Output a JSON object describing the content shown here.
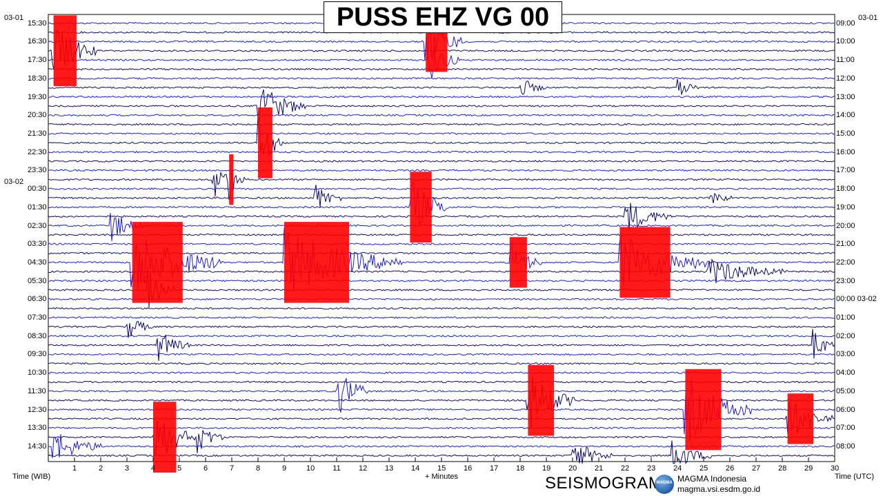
{
  "header": {
    "title": "PUSS EHZ VG 00"
  },
  "dates": {
    "left_top": "03-01",
    "left_mid": "03-02",
    "right_top": "03-01"
  },
  "axis": {
    "left_label": "Time (WIB)",
    "center_label": "+ Minutes",
    "right_label": "Time (UTC)"
  },
  "footer": {
    "brand": "SEISMOGRAM",
    "logo_text": "MAGMA",
    "org_name": "MAGMA Indonesia",
    "org_url": "magma.vsi.esdm.go.id"
  },
  "colors": {
    "trace_dark": "#0a0a6e",
    "trace_blue": "#1a1ae6",
    "clipped": "#ff0000",
    "grid": "#000000"
  },
  "chart_data": {
    "type": "helicorder",
    "station": "PUSS EHZ VG 00",
    "x_ticks": [
      "1",
      "2",
      "3",
      "4",
      "5",
      "6",
      "7",
      "8",
      "9",
      "10",
      "11",
      "12",
      "13",
      "14",
      "15",
      "16",
      "17",
      "18",
      "19",
      "20",
      "21",
      "22",
      "23",
      "24",
      "25",
      "26",
      "27",
      "28",
      "29",
      "30"
    ],
    "xlim": [
      0,
      30
    ],
    "left_ticks": [
      "15:30",
      "16:30",
      "17:30",
      "18:30",
      "19:30",
      "20:30",
      "21:30",
      "22:30",
      "23:30",
      "00:30",
      "01:30",
      "02:30",
      "03:30",
      "04:30",
      "05:30",
      "06:30",
      "07:30",
      "08:30",
      "09:30",
      "10:30",
      "11:30",
      "12:30",
      "13:30",
      "14:30"
    ],
    "right_ticks": [
      "09:00",
      "10:00",
      "11:00",
      "12:00",
      "13:00",
      "14:00",
      "15:00",
      "16:00",
      "17:00",
      "18:00",
      "19:00",
      "20:00",
      "21:00",
      "22:00",
      "23:00",
      "00:00 03-02",
      "01:00",
      "02:00",
      "03:00",
      "04:00",
      "05:00",
      "06:00",
      "07:00",
      "08:00"
    ],
    "traces_per_hour": 2,
    "trace_count": 48,
    "events": [
      {
        "row": 3,
        "minute": 0.2,
        "amp": 3.5,
        "dur": 1.6,
        "clipped": true
      },
      {
        "row": 2,
        "minute": 14.4,
        "amp": 3.0,
        "dur": 1.5,
        "clipped": true
      },
      {
        "row": 4,
        "minute": 14.5,
        "amp": 2.5,
        "dur": 1.2,
        "clipped": false
      },
      {
        "row": 9,
        "minute": 8.0,
        "amp": 2.8,
        "dur": 1.8,
        "clipped": false
      },
      {
        "row": 7,
        "minute": 18.0,
        "amp": 1.2,
        "dur": 1.0,
        "clipped": false
      },
      {
        "row": 7,
        "minute": 24.0,
        "amp": 1.2,
        "dur": 0.8,
        "clipped": false
      },
      {
        "row": 13,
        "minute": 8.0,
        "amp": 3.5,
        "dur": 1.0,
        "clipped": true
      },
      {
        "row": 17,
        "minute": 6.3,
        "amp": 2.0,
        "dur": 1.2,
        "clipped": false
      },
      {
        "row": 17,
        "minute": 6.9,
        "amp": 2.5,
        "dur": 0.3,
        "clipped": true
      },
      {
        "row": 19,
        "minute": 10.2,
        "amp": 1.6,
        "dur": 1.0,
        "clipped": false
      },
      {
        "row": 19,
        "minute": 25.3,
        "amp": 1.0,
        "dur": 0.8,
        "clipped": false
      },
      {
        "row": 20,
        "minute": 13.8,
        "amp": 3.5,
        "dur": 1.5,
        "clipped": true
      },
      {
        "row": 21,
        "minute": 22.0,
        "amp": 2.0,
        "dur": 1.8,
        "clipped": false
      },
      {
        "row": 22,
        "minute": 2.4,
        "amp": 1.8,
        "dur": 1.2,
        "clipped": false
      },
      {
        "row": 26,
        "minute": 3.2,
        "amp": 4.0,
        "dur": 3.5,
        "clipped": true
      },
      {
        "row": 26,
        "minute": 9.0,
        "amp": 4.0,
        "dur": 4.5,
        "clipped": true
      },
      {
        "row": 26,
        "minute": 17.6,
        "amp": 2.5,
        "dur": 1.2,
        "clipped": true
      },
      {
        "row": 26,
        "minute": 21.8,
        "amp": 3.5,
        "dur": 3.5,
        "clipped": true
      },
      {
        "row": 27,
        "minute": 25.2,
        "amp": 1.5,
        "dur": 3.0,
        "clipped": false
      },
      {
        "row": 29,
        "minute": 3.8,
        "amp": 2.5,
        "dur": 1.0,
        "clipped": false
      },
      {
        "row": 33,
        "minute": 3.0,
        "amp": 1.5,
        "dur": 1.0,
        "clipped": false
      },
      {
        "row": 35,
        "minute": 4.2,
        "amp": 1.8,
        "dur": 1.2,
        "clipped": false
      },
      {
        "row": 35,
        "minute": 29.2,
        "amp": 1.8,
        "dur": 0.8,
        "clipped": false
      },
      {
        "row": 40,
        "minute": 11.0,
        "amp": 3.0,
        "dur": 1.2,
        "clipped": false
      },
      {
        "row": 41,
        "minute": 18.3,
        "amp": 3.5,
        "dur": 1.8,
        "clipped": true
      },
      {
        "row": 42,
        "minute": 24.3,
        "amp": 4.0,
        "dur": 2.5,
        "clipped": true
      },
      {
        "row": 43,
        "minute": 28.2,
        "amp": 2.5,
        "dur": 1.8,
        "clipped": true
      },
      {
        "row": 45,
        "minute": 4.0,
        "amp": 3.5,
        "dur": 1.6,
        "clipped": true
      },
      {
        "row": 45,
        "minute": 5.7,
        "amp": 1.8,
        "dur": 1.0,
        "clipped": false
      },
      {
        "row": 46,
        "minute": 0.2,
        "amp": 1.8,
        "dur": 2.0,
        "clipped": false
      },
      {
        "row": 47,
        "minute": 20.0,
        "amp": 1.8,
        "dur": 1.5,
        "clipped": false
      },
      {
        "row": 47,
        "minute": 23.8,
        "amp": 1.8,
        "dur": 1.5,
        "clipped": false
      }
    ]
  }
}
